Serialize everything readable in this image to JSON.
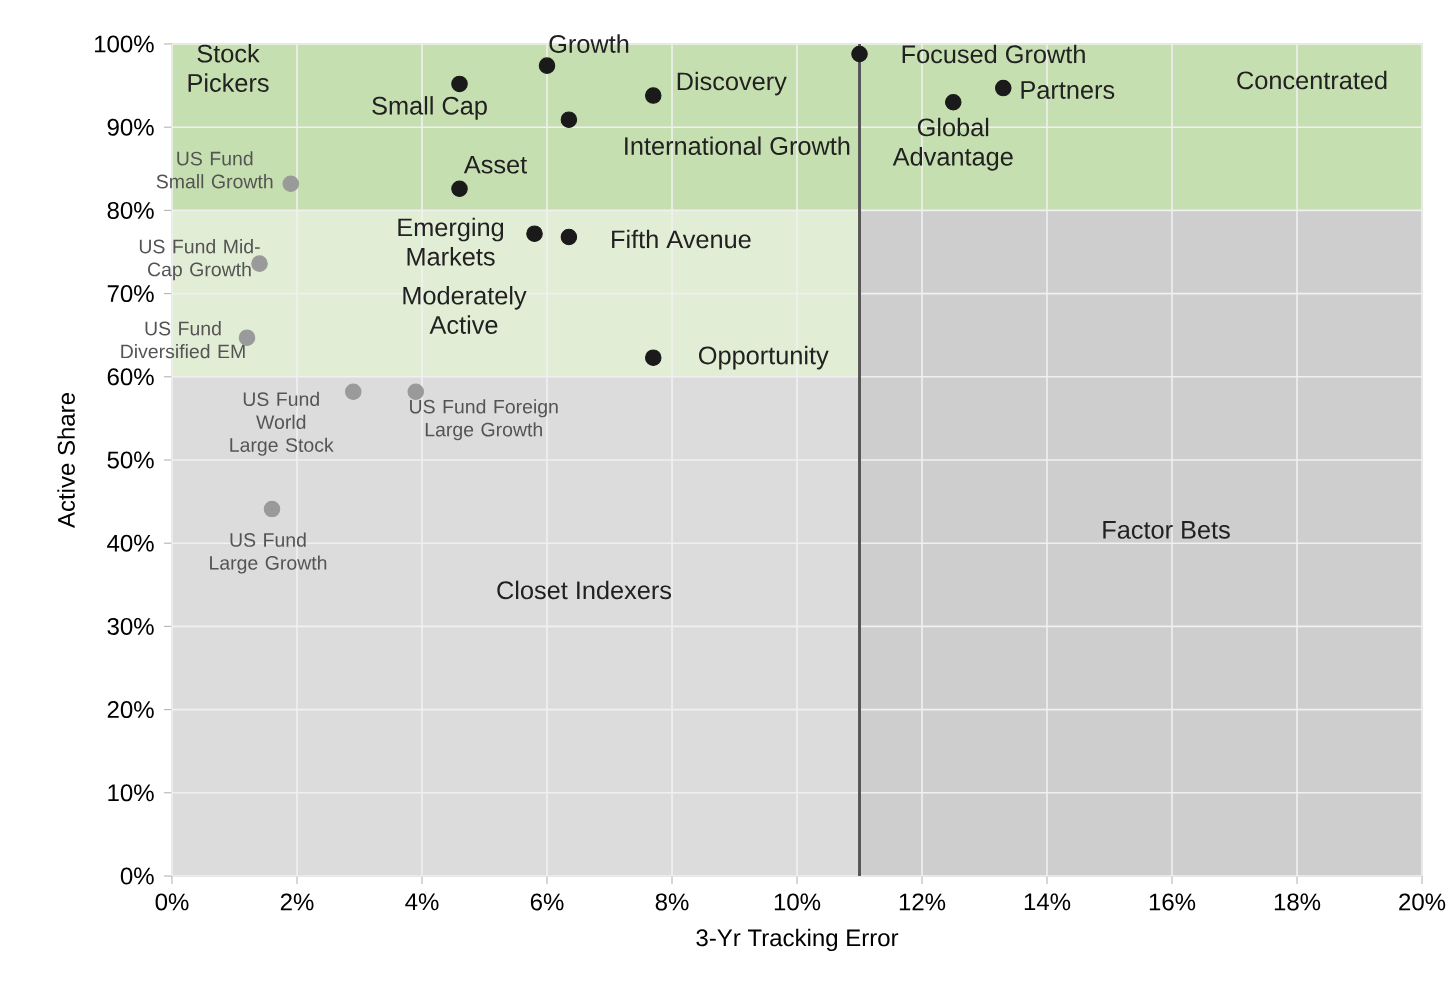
{
  "chart_data": {
    "type": "scatter",
    "xlabel": "3-Yr Tracking Error",
    "ylabel": "Active Share",
    "xlim": [
      0,
      20
    ],
    "ylim": [
      0,
      100
    ],
    "xticks": [
      {
        "value": 0,
        "label": "0%"
      },
      {
        "value": 2,
        "label": "2%"
      },
      {
        "value": 4,
        "label": "4%"
      },
      {
        "value": 6,
        "label": "6%"
      },
      {
        "value": 8,
        "label": "8%"
      },
      {
        "value": 10,
        "label": "10%"
      },
      {
        "value": 12,
        "label": "12%"
      },
      {
        "value": 14,
        "label": "14%"
      },
      {
        "value": 16,
        "label": "16%"
      },
      {
        "value": 18,
        "label": "18%"
      },
      {
        "value": 20,
        "label": "20%"
      }
    ],
    "yticks": [
      {
        "value": 0,
        "label": "0%"
      },
      {
        "value": 10,
        "label": "10%"
      },
      {
        "value": 20,
        "label": "20%"
      },
      {
        "value": 30,
        "label": "30%"
      },
      {
        "value": 40,
        "label": "40%"
      },
      {
        "value": 50,
        "label": "50%"
      },
      {
        "value": 60,
        "label": "60%"
      },
      {
        "value": 70,
        "label": "70%"
      },
      {
        "value": 80,
        "label": "80%"
      },
      {
        "value": 90,
        "label": "90%"
      },
      {
        "value": 100,
        "label": "100%"
      }
    ],
    "grid": true,
    "marker": "circle",
    "series": [
      {
        "color": "#1a1a1a",
        "x": [
          6.0,
          4.6,
          7.7,
          6.35,
          4.6,
          5.8,
          6.35,
          7.7,
          11.0,
          12.5,
          13.3
        ],
        "values": [
          97.4,
          95.2,
          93.8,
          90.9,
          82.6,
          77.2,
          76.8,
          62.3,
          98.8,
          93.0,
          94.7
        ]
      },
      {
        "color": "#9a9a9a",
        "x": [
          1.9,
          1.4,
          1.2,
          2.9,
          3.9,
          1.6
        ],
        "values": [
          83.2,
          73.6,
          64.7,
          58.2,
          58.2,
          44.1
        ]
      }
    ],
    "bands": [
      {
        "axis": "y",
        "from": 60,
        "to": 80,
        "color": "#e1edd5",
        "label": null
      },
      {
        "axis": "y",
        "from": 0,
        "to": 60,
        "color": "#dcdcdd",
        "label": null
      },
      {
        "axis": "x",
        "from": 11,
        "to": 20,
        "color": "#cececf",
        "label": null
      },
      {
        "axis": "y",
        "from": 80,
        "to": 100,
        "color": "#c6dfb0",
        "label": null
      }
    ],
    "ref_lines": [
      {
        "axis": "x",
        "value": 11,
        "color": "#555555"
      }
    ],
    "annotations": [
      {
        "text": "Growth",
        "x": 6.0,
        "y": 97.4
      },
      {
        "text": "Small Cap",
        "x": 4.6,
        "y": 95.2
      },
      {
        "text": "Discovery",
        "x": 7.7,
        "y": 93.8
      },
      {
        "text": "International Growth",
        "x": 6.35,
        "y": 90.9
      },
      {
        "text": "Asset",
        "x": 4.6,
        "y": 82.6
      },
      {
        "text": "Emerging Markets",
        "x": 5.8,
        "y": 77.2
      },
      {
        "text": "Fifth Avenue",
        "x": 6.35,
        "y": 76.8
      },
      {
        "text": "Opportunity",
        "x": 7.7,
        "y": 62.3
      },
      {
        "text": "Focused Growth",
        "x": 11.0,
        "y": 98.8
      },
      {
        "text": "Global Advantage",
        "x": 12.5,
        "y": 93.0
      },
      {
        "text": "Partners",
        "x": 13.3,
        "y": 94.7
      },
      {
        "text": "US Fund Small Growth",
        "x": 1.9,
        "y": 83.2
      },
      {
        "text": "US Fund Mid-Cap Growth",
        "x": 1.4,
        "y": 73.6
      },
      {
        "text": "US Fund Diversified EM",
        "x": 1.2,
        "y": 64.7
      },
      {
        "text": "US Fund World Large Stock",
        "x": 2.9,
        "y": 58.2
      },
      {
        "text": "US Fund Foreign Large Growth",
        "x": 3.9,
        "y": 58.2
      },
      {
        "text": "US Fund Large Growth",
        "x": 1.6,
        "y": 44.1
      },
      "Stock Pickers",
      "Concentrated",
      "Moderately Active",
      "Closet Indexers",
      "Factor Bets"
    ]
  }
}
